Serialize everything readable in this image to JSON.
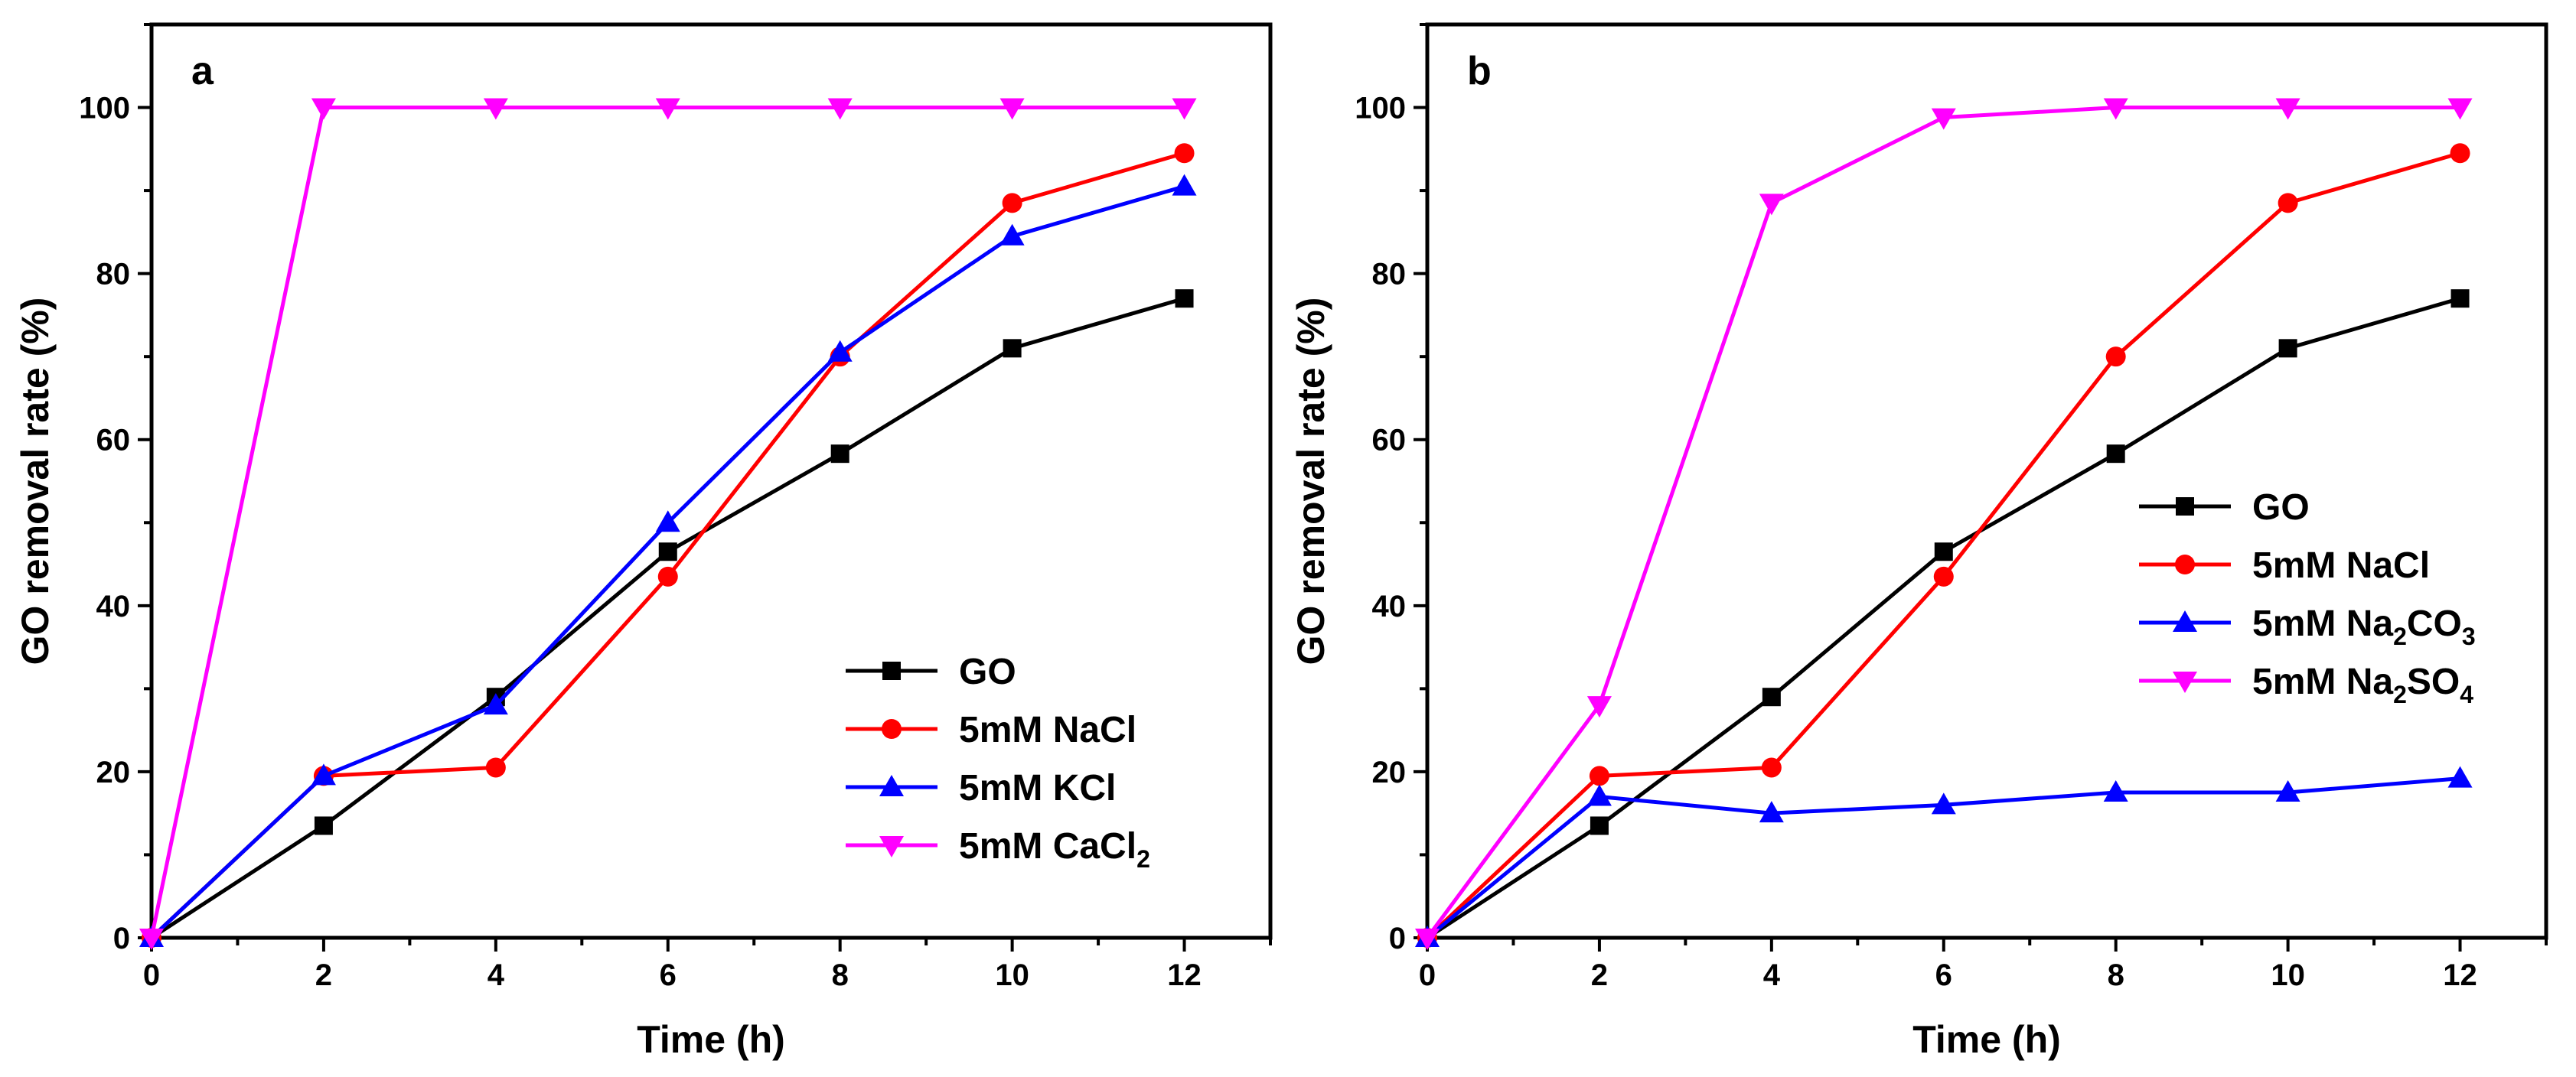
{
  "chart_data": [
    {
      "type": "line",
      "panel": "a",
      "xlabel": "Time (h)",
      "ylabel": "GO removal rate (%)",
      "xlim": [
        0,
        13
      ],
      "ylim": [
        0,
        110
      ],
      "xticks": [
        0,
        2,
        4,
        6,
        8,
        10,
        12
      ],
      "yticks": [
        0,
        20,
        40,
        60,
        80,
        100
      ],
      "legend_position": "bottom-right",
      "x": [
        0,
        2,
        4,
        6,
        8,
        10,
        12
      ],
      "series": [
        {
          "name": "GO",
          "label_main": "GO",
          "label_sub": "",
          "label_tail": "",
          "color": "#000000",
          "marker": "square",
          "values": [
            0,
            13.5,
            29,
            46.5,
            58.3,
            71,
            77
          ]
        },
        {
          "name": "5mM NaCl",
          "label_main": "5mM NaCl",
          "label_sub": "",
          "label_tail": "",
          "color": "#ff0000",
          "marker": "circle",
          "values": [
            0,
            19.5,
            20.5,
            43.5,
            70,
            88.5,
            94.5
          ]
        },
        {
          "name": "5mM KCl",
          "label_main": "5mM KCl",
          "label_sub": "",
          "label_tail": "",
          "color": "#0000ff",
          "marker": "triangle-up",
          "values": [
            0,
            19.5,
            28,
            50,
            70.5,
            84.5,
            90.5
          ]
        },
        {
          "name": "5mM CaCl2",
          "label_main": "5mM CaCl",
          "label_sub": "2",
          "label_tail": "",
          "color": "#ff00ff",
          "marker": "triangle-down",
          "values": [
            0,
            100,
            100,
            100,
            100,
            100,
            100
          ]
        }
      ]
    },
    {
      "type": "line",
      "panel": "b",
      "xlabel": "Time (h)",
      "ylabel": "GO removal rate (%)",
      "xlim": [
        0,
        13
      ],
      "ylim": [
        0,
        110
      ],
      "xticks": [
        0,
        2,
        4,
        6,
        8,
        10,
        12
      ],
      "yticks": [
        0,
        20,
        40,
        60,
        80,
        100
      ],
      "legend_position": "middle-right",
      "x": [
        0,
        2,
        4,
        6,
        8,
        10,
        12
      ],
      "series": [
        {
          "name": "GO",
          "label_main": "GO",
          "label_sub": "",
          "label_tail": "",
          "color": "#000000",
          "marker": "square",
          "values": [
            0,
            13.5,
            29,
            46.5,
            58.3,
            71,
            77
          ]
        },
        {
          "name": "5mM NaCl",
          "label_main": "5mM NaCl",
          "label_sub": "",
          "label_tail": "",
          "color": "#ff0000",
          "marker": "circle",
          "values": [
            0,
            19.5,
            20.5,
            43.5,
            70,
            88.5,
            94.5
          ]
        },
        {
          "name": "5mM Na2CO3",
          "label_main": "5mM Na",
          "label_sub": "2",
          "label_tail": "CO",
          "label_sub2": "3",
          "color": "#0000ff",
          "marker": "triangle-up",
          "values": [
            0,
            17,
            15,
            16,
            17.5,
            17.5,
            19.2
          ]
        },
        {
          "name": "5mM Na2SO4",
          "label_main": "5mM Na",
          "label_sub": "2",
          "label_tail": "SO",
          "label_sub2": "4",
          "color": "#ff00ff",
          "marker": "triangle-down",
          "values": [
            0,
            28,
            88.5,
            98.8,
            100,
            100,
            100
          ]
        }
      ]
    }
  ]
}
